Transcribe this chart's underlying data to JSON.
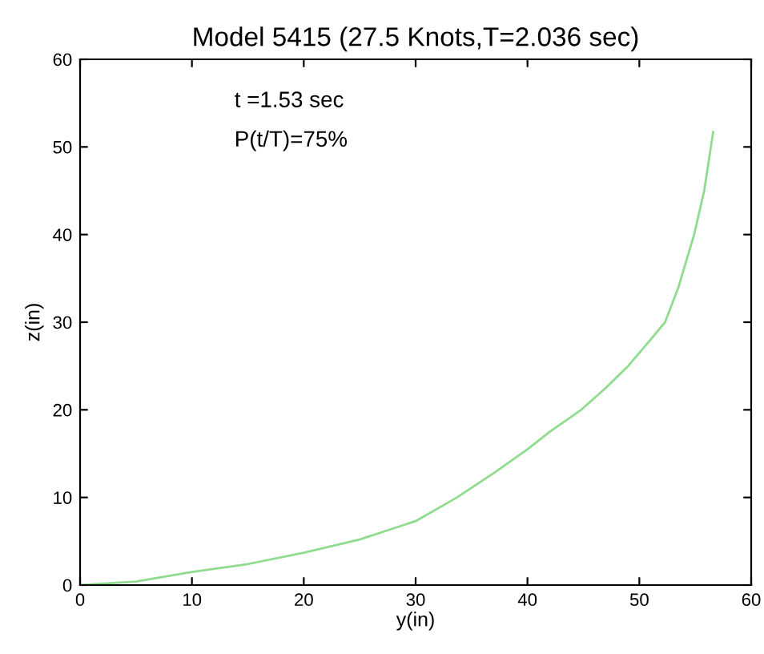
{
  "chart_data": {
    "type": "line",
    "title": "Model 5415 (27.5 Knots,T=2.036 sec)",
    "xlabel": "y(in)",
    "ylabel": "z(in)",
    "annotations": [
      "t =1.53 sec",
      "P(t/T)=75%"
    ],
    "x": [
      0,
      5,
      10,
      15,
      20,
      25,
      30,
      33.7,
      37,
      40,
      42,
      44.8,
      47,
      49,
      51,
      52.3,
      53.5,
      54.9,
      55.8,
      56.6
    ],
    "series": [
      {
        "color": "#8fdc8f",
        "values": [
          0,
          0.4,
          1.5,
          2.4,
          3.7,
          5.2,
          7.3,
          10,
          12.8,
          15.5,
          17.5,
          20,
          22.5,
          25,
          28,
          30,
          34,
          40,
          45,
          51.7
        ]
      }
    ],
    "xlim": [
      0,
      60
    ],
    "ylim": [
      0,
      60
    ],
    "xticks": [
      0,
      10,
      20,
      30,
      40,
      50,
      60
    ],
    "yticks": [
      0,
      10,
      20,
      30,
      40,
      50,
      60
    ],
    "grid": false,
    "legend": false,
    "marker": "none",
    "line_style": "solid"
  }
}
